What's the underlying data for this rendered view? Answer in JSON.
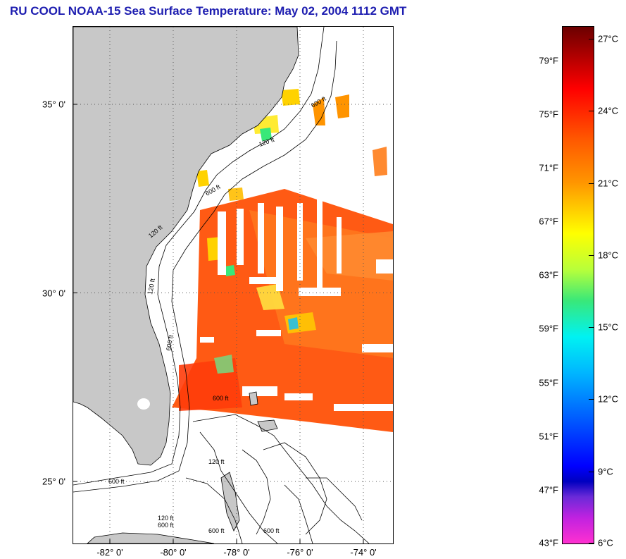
{
  "title": "RU COOL  NOAA-15  Sea Surface Temperature:  May 02, 2004 1112 GMT",
  "map": {
    "lat_labels": [
      {
        "label": "35° 0'",
        "lat": 35
      },
      {
        "label": "30° 0'",
        "lat": 30
      },
      {
        "label": "25° 0'",
        "lat": 25
      }
    ],
    "lon_labels": [
      {
        "label": "-82° 0'",
        "lon": -82
      },
      {
        "label": "-80° 0'",
        "lon": -80
      },
      {
        "label": "-78° 0'",
        "lon": -78
      },
      {
        "label": "-76° 0'",
        "lon": -76
      },
      {
        "label": "-74° 0'",
        "lon": -74
      }
    ],
    "isobath_labels": [
      "600 ft",
      "120 ft",
      "600 ft",
      "120 ft",
      "120 ft",
      "600 ft",
      "120 ft",
      "600 ft",
      "600 ft",
      "120 ft",
      "600 ft",
      "600 ft",
      "600 ft"
    ],
    "colors": {
      "land": "#c8c8c8",
      "cloud": "#ffffff",
      "warm": "#ff5a14",
      "cool": "#ffd200"
    }
  },
  "colorbar": {
    "fahrenheit": [
      {
        "label": "79°F",
        "value": 79
      },
      {
        "label": "75°F",
        "value": 75
      },
      {
        "label": "71°F",
        "value": 71
      },
      {
        "label": "67°F",
        "value": 67
      },
      {
        "label": "63°F",
        "value": 63
      },
      {
        "label": "59°F",
        "value": 59
      },
      {
        "label": "55°F",
        "value": 55
      },
      {
        "label": "51°F",
        "value": 51
      },
      {
        "label": "47°F",
        "value": 47
      },
      {
        "label": "43°F",
        "value": 43
      }
    ],
    "celsius": [
      {
        "label": "27°C",
        "value": 27
      },
      {
        "label": "24°C",
        "value": 24
      },
      {
        "label": "21°C",
        "value": 21
      },
      {
        "label": "18°C",
        "value": 18
      },
      {
        "label": "15°C",
        "value": 15
      },
      {
        "label": "12°C",
        "value": 12
      },
      {
        "label": "9°C",
        "value": 9
      },
      {
        "label": "6°C",
        "value": 6
      }
    ]
  }
}
